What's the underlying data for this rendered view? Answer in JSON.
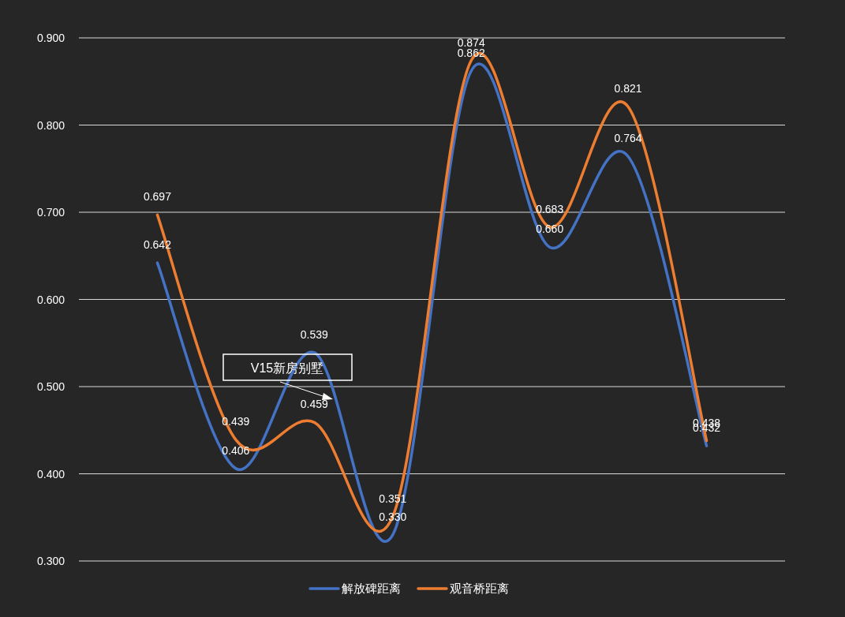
{
  "chart_data": {
    "type": "line",
    "categories": [
      null,
      null,
      null,
      null,
      null,
      null,
      null,
      null
    ],
    "series": [
      {
        "name": "解放碑距离",
        "color": "#4472c4",
        "values": [
          0.642,
          0.406,
          0.539,
          0.33,
          0.862,
          0.66,
          0.764,
          0.432
        ],
        "value_labels": [
          "0.642",
          "0.406",
          "0.539",
          "0.330",
          "0.862",
          "0.660",
          "0.764",
          "0.432"
        ]
      },
      {
        "name": "观音桥距离",
        "color": "#ed7d31",
        "values": [
          0.697,
          0.439,
          0.459,
          0.351,
          0.874,
          0.683,
          0.821,
          0.438
        ],
        "value_labels": [
          "0.697",
          "0.439",
          "0.459",
          "0.351",
          "0.874",
          "0.683",
          "0.821",
          "0.438"
        ]
      }
    ],
    "ylim": [
      0.3,
      0.9
    ],
    "yticks": [
      {
        "value": 0.3,
        "label": "0.300"
      },
      {
        "value": 0.4,
        "label": "0.400"
      },
      {
        "value": 0.5,
        "label": "0.500"
      },
      {
        "value": 0.6,
        "label": "0.600"
      },
      {
        "value": 0.7,
        "label": "0.700"
      },
      {
        "value": 0.8,
        "label": "0.800"
      },
      {
        "value": 0.9,
        "label": "0.900"
      }
    ],
    "grid": "y",
    "legend": "bottom",
    "marker": "none",
    "line_style": "solid",
    "annotations": [
      "V15新房别墅"
    ]
  }
}
